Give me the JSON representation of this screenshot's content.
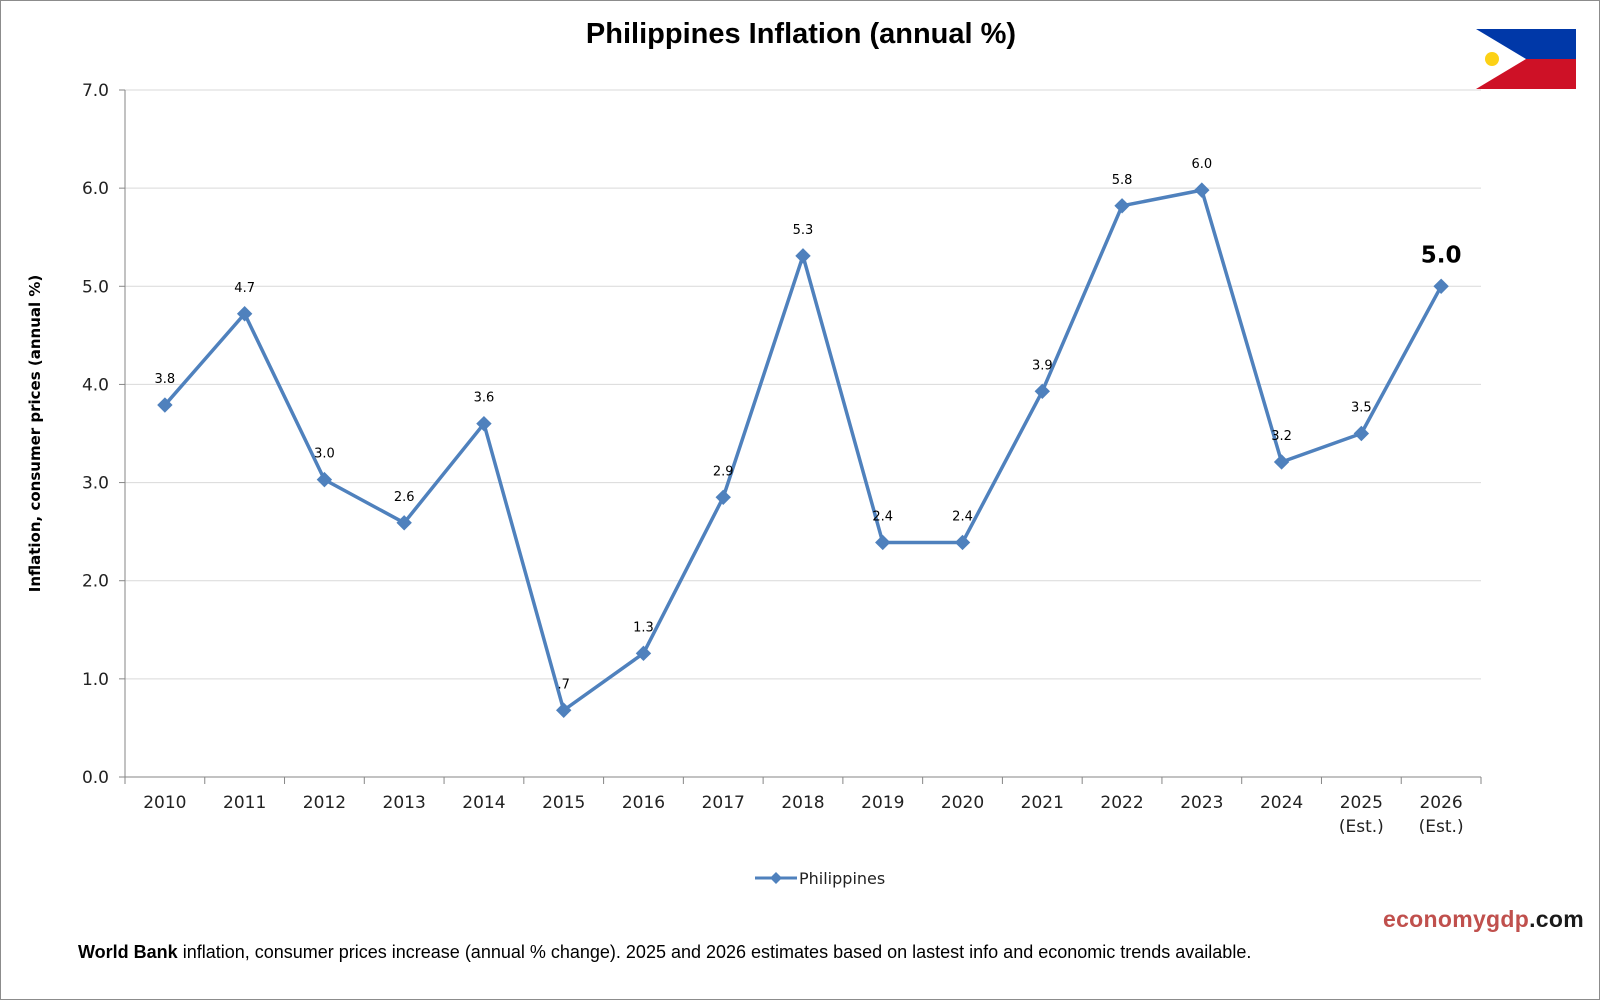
{
  "chart_data": {
    "type": "line",
    "title": "Philippines Inflation (annual %)",
    "ylabel": "Inflation, consumer prices (annual %)",
    "xlabel": "",
    "ylim": [
      0,
      7
    ],
    "yticks": [
      "0.0",
      "1.0",
      "2.0",
      "3.0",
      "4.0",
      "5.0",
      "6.0",
      "7.0"
    ],
    "grid": true,
    "legend_position": "bottom",
    "categories": [
      [
        "2010"
      ],
      [
        "2011"
      ],
      [
        "2012"
      ],
      [
        "2013"
      ],
      [
        "2014"
      ],
      [
        "2015"
      ],
      [
        "2016"
      ],
      [
        "2017"
      ],
      [
        "2018"
      ],
      [
        "2019"
      ],
      [
        "2020"
      ],
      [
        "2021"
      ],
      [
        "2022"
      ],
      [
        "2023"
      ],
      [
        "2024"
      ],
      [
        "2025",
        "(Est.)"
      ],
      [
        "2026",
        "(Est.)"
      ]
    ],
    "series": [
      {
        "name": "Philippines",
        "color": "#4f81bd",
        "values": [
          3.79,
          4.72,
          3.03,
          2.59,
          3.6,
          0.68,
          1.26,
          2.85,
          5.31,
          2.39,
          2.39,
          3.93,
          5.82,
          5.98,
          3.21,
          3.5,
          5.0
        ],
        "labels": [
          "3.8",
          "4.7",
          "3.0",
          "2.6",
          "3.6",
          ".7",
          "1.3",
          "2.9",
          "5.3",
          "2.4",
          "2.4",
          "3.9",
          "5.8",
          "6.0",
          "3.2",
          "3.5",
          "5.0"
        ]
      }
    ]
  },
  "legend": {
    "label": "Philippines"
  },
  "brand": {
    "part1": "economygdp",
    "part2": ".com"
  },
  "footnote": {
    "strong": "World Bank",
    "text": " inflation, consumer prices increase (annual % change).  2025 and 2026 estimates based on lastest info and economic trends available."
  },
  "flag": {
    "blue": "#0038a8",
    "red": "#ce1126",
    "white": "#ffffff",
    "sun": "#fcd116"
  }
}
